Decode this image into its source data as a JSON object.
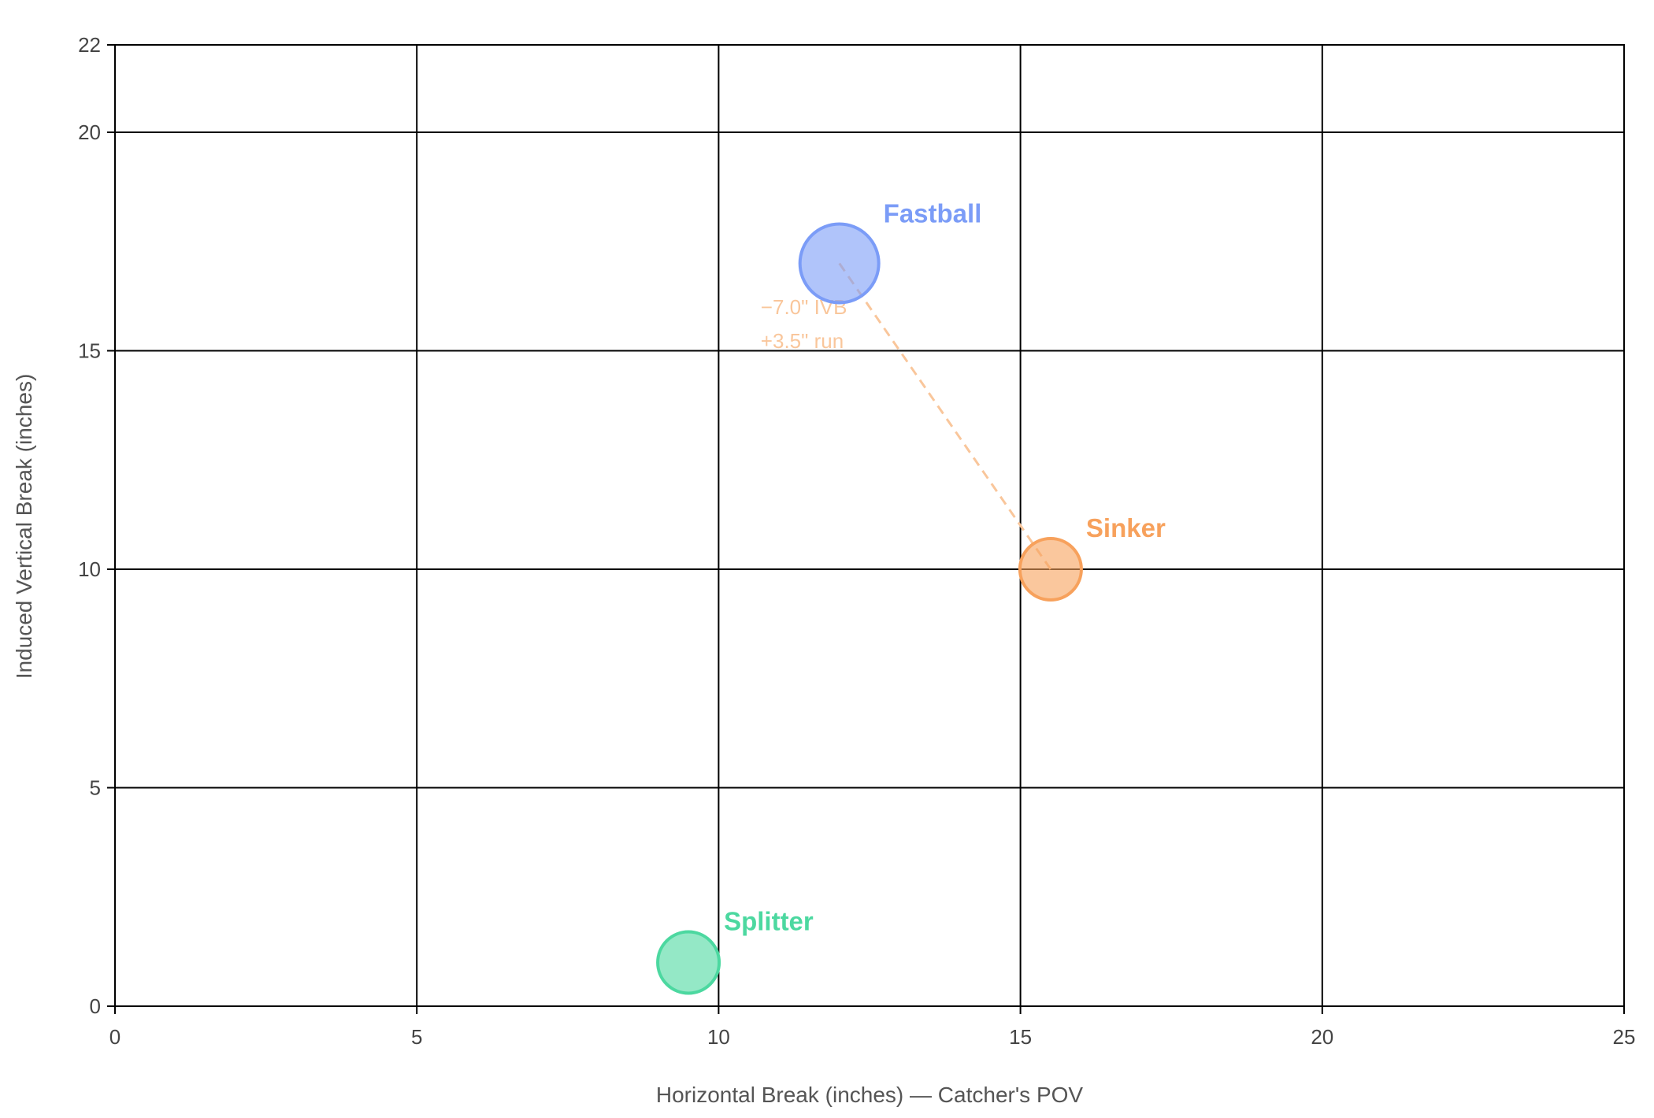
{
  "chart_data": {
    "type": "scatter",
    "title": "",
    "xlabel": "Horizontal Break (inches) — Catcher's POV",
    "ylabel": "Induced Vertical Break (inches)",
    "xlim": [
      0,
      25
    ],
    "ylim": [
      0,
      22
    ],
    "xticks": [
      0,
      5,
      10,
      15,
      20,
      25
    ],
    "yticks": [
      0,
      5,
      10,
      15,
      20,
      22
    ],
    "grid": true,
    "series": [
      {
        "name": "Fastball",
        "x": 12.0,
        "y": 17.0,
        "color": "#7b9cf7",
        "size": 1.0
      },
      {
        "name": "Sinker",
        "x": 15.5,
        "y": 10.0,
        "color": "#f7a15c",
        "size": 0.78
      },
      {
        "name": "Splitter",
        "x": 9.5,
        "y": 1.0,
        "color": "#4cd8a0",
        "size": 0.78
      }
    ],
    "annotation": {
      "from": "Fastball",
      "to": "Sinker",
      "line1": "−7.0\" IVB",
      "line2": "+3.5\" run",
      "color": "#f9c69b"
    }
  }
}
